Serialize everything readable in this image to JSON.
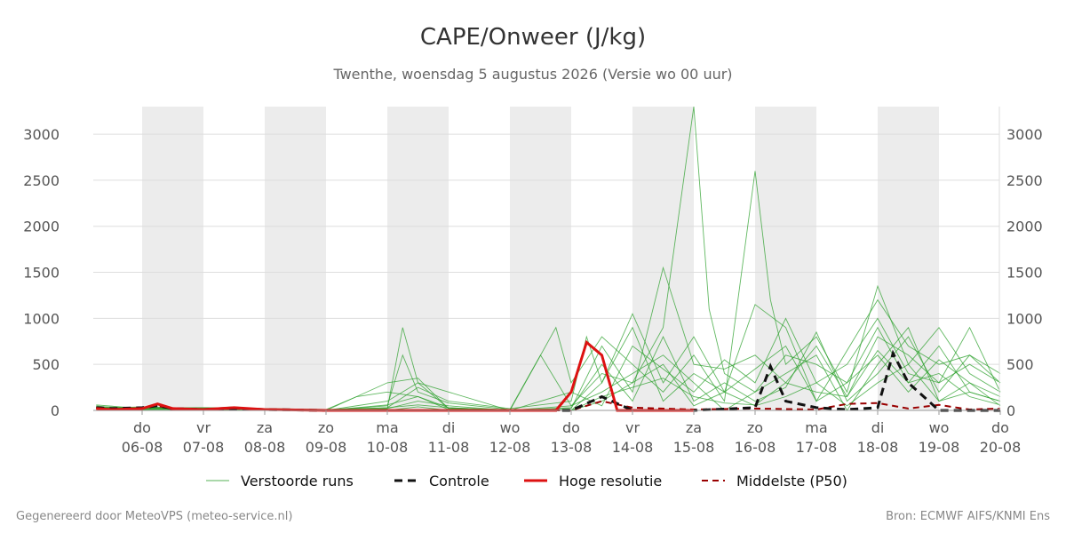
{
  "colors": {
    "ensemble": "#2ca02c",
    "control": "#111111",
    "hires": "#dd1111",
    "median": "#990000",
    "night_band": "#ececec",
    "grid": "#dddddd"
  },
  "chart_data": {
    "type": "line",
    "title": "CAPE/Onweer (J/kg)",
    "subtitle": "Twenthe, woensdag  5 augustus 2026 (Versie wo 00 uur)",
    "ylim": [
      0,
      3300
    ],
    "yticks": [
      0,
      500,
      1000,
      1500,
      2000,
      2500,
      3000
    ],
    "xlim": [
      -0.75,
      14
    ],
    "x_ticks": [
      {
        "day": "do",
        "date": "06-08"
      },
      {
        "day": "vr",
        "date": "07-08"
      },
      {
        "day": "za",
        "date": "08-08"
      },
      {
        "day": "zo",
        "date": "09-08"
      },
      {
        "day": "ma",
        "date": "10-08"
      },
      {
        "day": "di",
        "date": "11-08"
      },
      {
        "day": "wo",
        "date": "12-08"
      },
      {
        "day": "do",
        "date": "13-08"
      },
      {
        "day": "vr",
        "date": "14-08"
      },
      {
        "day": "za",
        "date": "15-08"
      },
      {
        "day": "zo",
        "date": "16-08"
      },
      {
        "day": "ma",
        "date": "17-08"
      },
      {
        "day": "di",
        "date": "18-08"
      },
      {
        "day": "wo",
        "date": "19-08"
      },
      {
        "day": "do",
        "date": "20-08"
      }
    ],
    "shaded_days": [
      0,
      2,
      4,
      6,
      8,
      10,
      12
    ],
    "legend": [
      "Verstoorde runs",
      "Controle",
      "Hoge resolutie",
      "Middelste (P50)"
    ],
    "ensemble_members": [
      [
        [
          -0.75,
          40
        ],
        [
          -0.5,
          20
        ],
        [
          -0.25,
          30
        ],
        [
          0,
          20
        ],
        [
          0.25,
          60
        ],
        [
          0.5,
          20
        ],
        [
          1,
          10
        ],
        [
          1.5,
          30
        ],
        [
          2,
          10
        ],
        [
          3,
          5
        ],
        [
          3.5,
          0
        ],
        [
          4,
          20
        ],
        [
          4.25,
          900
        ],
        [
          4.5,
          300
        ],
        [
          5,
          20
        ],
        [
          6,
          0
        ],
        [
          7,
          20
        ],
        [
          7.5,
          700
        ],
        [
          8,
          200
        ],
        [
          8.5,
          1550
        ],
        [
          9,
          500
        ],
        [
          9.5,
          450
        ],
        [
          10,
          600
        ],
        [
          10.5,
          300
        ],
        [
          11,
          700
        ],
        [
          11.5,
          150
        ],
        [
          12,
          800
        ],
        [
          12.5,
          600
        ],
        [
          13,
          300
        ],
        [
          13.5,
          500
        ],
        [
          14,
          300
        ]
      ],
      [
        [
          -0.75,
          30
        ],
        [
          -0.5,
          10
        ],
        [
          0,
          30
        ],
        [
          0.5,
          10
        ],
        [
          1,
          20
        ],
        [
          1.5,
          40
        ],
        [
          2,
          10
        ],
        [
          3,
          0
        ],
        [
          4,
          50
        ],
        [
          4.25,
          600
        ],
        [
          4.5,
          200
        ],
        [
          5,
          80
        ],
        [
          6,
          10
        ],
        [
          6.5,
          600
        ],
        [
          7,
          50
        ],
        [
          7.5,
          400
        ],
        [
          8,
          300
        ],
        [
          8.5,
          900
        ],
        [
          9,
          3300
        ],
        [
          9.25,
          1100
        ],
        [
          9.5,
          400
        ],
        [
          10,
          200
        ],
        [
          10.5,
          600
        ],
        [
          11,
          500
        ],
        [
          11.5,
          300
        ],
        [
          12,
          900
        ],
        [
          12.5,
          300
        ],
        [
          13,
          700
        ],
        [
          13.5,
          200
        ],
        [
          14,
          100
        ]
      ],
      [
        [
          -0.75,
          50
        ],
        [
          -0.5,
          30
        ],
        [
          0,
          10
        ],
        [
          1,
          30
        ],
        [
          2,
          20
        ],
        [
          3,
          10
        ],
        [
          3.5,
          150
        ],
        [
          4,
          200
        ],
        [
          4.5,
          150
        ],
        [
          5,
          30
        ],
        [
          6,
          0
        ],
        [
          6.75,
          900
        ],
        [
          7,
          300
        ],
        [
          7.5,
          800
        ],
        [
          8,
          500
        ],
        [
          8.5,
          200
        ],
        [
          9,
          600
        ],
        [
          9.5,
          100
        ],
        [
          10,
          2600
        ],
        [
          10.25,
          1200
        ],
        [
          10.5,
          500
        ],
        [
          11,
          800
        ],
        [
          11.5,
          200
        ],
        [
          12,
          1350
        ],
        [
          12.5,
          500
        ],
        [
          13,
          900
        ],
        [
          13.5,
          400
        ],
        [
          14,
          200
        ]
      ],
      [
        [
          -0.75,
          20
        ],
        [
          0,
          40
        ],
        [
          0.5,
          30
        ],
        [
          1,
          10
        ],
        [
          2,
          5
        ],
        [
          3,
          10
        ],
        [
          4,
          30
        ],
        [
          4.5,
          250
        ],
        [
          5,
          100
        ],
        [
          6,
          20
        ],
        [
          7,
          100
        ],
        [
          7.25,
          800
        ],
        [
          7.5,
          300
        ],
        [
          8,
          1050
        ],
        [
          8.5,
          300
        ],
        [
          9,
          800
        ],
        [
          9.5,
          200
        ],
        [
          10,
          1150
        ],
        [
          10.5,
          900
        ],
        [
          11,
          100
        ],
        [
          11.5,
          650
        ],
        [
          12,
          1200
        ],
        [
          12.5,
          700
        ],
        [
          13,
          500
        ],
        [
          13.5,
          600
        ],
        [
          14,
          400
        ]
      ],
      [
        [
          -0.75,
          30
        ],
        [
          0,
          20
        ],
        [
          1,
          30
        ],
        [
          2,
          10
        ],
        [
          3,
          0
        ],
        [
          4,
          100
        ],
        [
          4.5,
          300
        ],
        [
          5,
          200
        ],
        [
          6,
          0
        ],
        [
          7,
          200
        ],
        [
          7.5,
          50
        ],
        [
          8,
          700
        ],
        [
          8.5,
          450
        ],
        [
          9,
          200
        ],
        [
          9.5,
          550
        ],
        [
          10,
          300
        ],
        [
          10.5,
          1000
        ],
        [
          11,
          300
        ],
        [
          11.5,
          500
        ],
        [
          12,
          1000
        ],
        [
          12.5,
          400
        ],
        [
          13,
          300
        ],
        [
          13.5,
          900
        ],
        [
          14,
          200
        ]
      ],
      [
        [
          -0.75,
          40
        ],
        [
          0,
          30
        ],
        [
          1,
          20
        ],
        [
          2,
          10
        ],
        [
          3,
          0
        ],
        [
          4,
          300
        ],
        [
          4.5,
          350
        ],
        [
          5,
          20
        ],
        [
          6,
          10
        ],
        [
          7,
          0
        ],
        [
          7.5,
          300
        ],
        [
          8,
          900
        ],
        [
          8.5,
          100
        ],
        [
          9,
          400
        ],
        [
          9.5,
          200
        ],
        [
          10,
          450
        ],
        [
          10.5,
          700
        ],
        [
          11,
          100
        ],
        [
          11.5,
          300
        ],
        [
          12,
          600
        ],
        [
          12.5,
          200
        ],
        [
          13,
          550
        ],
        [
          13.5,
          300
        ],
        [
          14,
          150
        ]
      ],
      [
        [
          -0.75,
          20
        ],
        [
          0,
          10
        ],
        [
          1,
          10
        ],
        [
          2,
          0
        ],
        [
          3,
          0
        ],
        [
          4,
          20
        ],
        [
          4.5,
          100
        ],
        [
          5,
          50
        ],
        [
          6,
          0
        ],
        [
          7,
          50
        ],
        [
          7.5,
          200
        ],
        [
          8,
          400
        ],
        [
          8.5,
          600
        ],
        [
          9,
          300
        ],
        [
          9.5,
          0
        ],
        [
          10,
          200
        ],
        [
          10.5,
          400
        ],
        [
          11,
          600
        ],
        [
          11.5,
          0
        ],
        [
          12,
          500
        ],
        [
          12.5,
          900
        ],
        [
          13,
          100
        ],
        [
          13.5,
          300
        ],
        [
          14,
          50
        ]
      ],
      [
        [
          -0.75,
          30
        ],
        [
          0,
          30
        ],
        [
          1,
          30
        ],
        [
          2,
          10
        ],
        [
          3,
          0
        ],
        [
          4,
          60
        ],
        [
          4.5,
          150
        ],
        [
          5,
          10
        ],
        [
          6,
          0
        ],
        [
          7,
          30
        ],
        [
          7.5,
          500
        ],
        [
          8,
          100
        ],
        [
          8.5,
          800
        ],
        [
          9,
          100
        ],
        [
          9.5,
          300
        ],
        [
          10,
          100
        ],
        [
          10.5,
          250
        ],
        [
          11,
          850
        ],
        [
          11.5,
          100
        ],
        [
          12,
          400
        ],
        [
          12.5,
          800
        ],
        [
          13,
          200
        ],
        [
          13.5,
          600
        ],
        [
          14,
          300
        ]
      ],
      [
        [
          -0.75,
          60
        ],
        [
          0,
          20
        ],
        [
          1,
          20
        ],
        [
          2,
          10
        ],
        [
          3,
          0
        ],
        [
          4,
          30
        ],
        [
          4.5,
          60
        ],
        [
          5,
          30
        ],
        [
          6,
          0
        ],
        [
          7,
          0
        ],
        [
          7.5,
          100
        ],
        [
          8,
          300
        ],
        [
          8.5,
          500
        ],
        [
          9,
          50
        ],
        [
          9.5,
          200
        ],
        [
          10,
          50
        ],
        [
          10.5,
          150
        ],
        [
          11,
          300
        ],
        [
          11.5,
          50
        ],
        [
          12,
          300
        ],
        [
          12.5,
          500
        ],
        [
          13,
          100
        ],
        [
          13.5,
          200
        ],
        [
          14,
          100
        ]
      ],
      [
        [
          -0.75,
          25
        ],
        [
          0,
          15
        ],
        [
          1,
          25
        ],
        [
          2,
          5
        ],
        [
          3,
          0
        ],
        [
          4,
          0
        ],
        [
          4.5,
          40
        ],
        [
          5,
          0
        ],
        [
          6,
          0
        ],
        [
          7,
          0
        ],
        [
          7.5,
          150
        ],
        [
          8,
          250
        ],
        [
          8.5,
          350
        ],
        [
          9,
          150
        ],
        [
          9.5,
          80
        ],
        [
          10,
          60
        ],
        [
          10.5,
          300
        ],
        [
          11,
          200
        ],
        [
          11.5,
          150
        ],
        [
          12,
          650
        ],
        [
          12.5,
          300
        ],
        [
          13,
          400
        ],
        [
          13.5,
          150
        ],
        [
          14,
          60
        ]
      ]
    ],
    "control": [
      [
        -0.75,
        30
      ],
      [
        -0.5,
        20
      ],
      [
        0,
        30
      ],
      [
        0.25,
        50
      ],
      [
        0.5,
        20
      ],
      [
        1,
        10
      ],
      [
        1.5,
        20
      ],
      [
        2,
        10
      ],
      [
        3,
        0
      ],
      [
        4,
        0
      ],
      [
        5,
        0
      ],
      [
        6,
        0
      ],
      [
        7,
        0
      ],
      [
        7.5,
        150
      ],
      [
        8,
        0
      ],
      [
        9,
        0
      ],
      [
        10,
        30
      ],
      [
        10.25,
        480
      ],
      [
        10.5,
        100
      ],
      [
        11,
        30
      ],
      [
        11.5,
        10
      ],
      [
        12,
        30
      ],
      [
        12.25,
        620
      ],
      [
        12.5,
        300
      ],
      [
        13,
        0
      ],
      [
        14,
        0
      ]
    ],
    "hires": [
      [
        -0.75,
        20
      ],
      [
        -0.5,
        10
      ],
      [
        0,
        20
      ],
      [
        0.25,
        70
      ],
      [
        0.5,
        20
      ],
      [
        1,
        10
      ],
      [
        1.5,
        30
      ],
      [
        2,
        10
      ],
      [
        3,
        0
      ],
      [
        4,
        0
      ],
      [
        5,
        0
      ],
      [
        6,
        0
      ],
      [
        6.75,
        0
      ],
      [
        7,
        200
      ],
      [
        7.25,
        740
      ],
      [
        7.5,
        600
      ],
      [
        7.75,
        0
      ],
      [
        8,
        0
      ],
      [
        8.5,
        0
      ],
      [
        9,
        0
      ]
    ],
    "median": [
      [
        -0.75,
        30
      ],
      [
        -0.5,
        10
      ],
      [
        0,
        20
      ],
      [
        0.25,
        50
      ],
      [
        0.5,
        10
      ],
      [
        1,
        10
      ],
      [
        1.5,
        20
      ],
      [
        2,
        10
      ],
      [
        3,
        0
      ],
      [
        4,
        0
      ],
      [
        5,
        0
      ],
      [
        6,
        0
      ],
      [
        7,
        0
      ],
      [
        7.5,
        100
      ],
      [
        8,
        30
      ],
      [
        9,
        10
      ],
      [
        10,
        20
      ],
      [
        11,
        10
      ],
      [
        11.5,
        70
      ],
      [
        12,
        80
      ],
      [
        12.5,
        20
      ],
      [
        13,
        60
      ],
      [
        13.5,
        10
      ],
      [
        14,
        20
      ]
    ]
  },
  "footer": {
    "left": "Gegenereerd door MeteoVPS (meteo-service.nl)",
    "right": "Bron: ECMWF AIFS/KNMI Ens"
  }
}
